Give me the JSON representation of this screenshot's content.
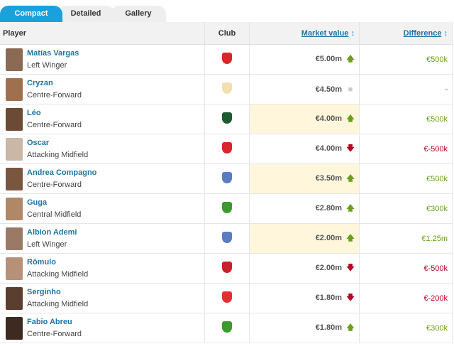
{
  "tabs": [
    {
      "label": "Compact",
      "active": true
    },
    {
      "label": "Detailed"
    },
    {
      "label": "Gallery"
    }
  ],
  "headers": {
    "player": "Player",
    "club": "Club",
    "market_value": "Market value",
    "difference": "Difference",
    "sort_icon": "↕"
  },
  "colors": {
    "accent": "#1aa0dc",
    "up": "#6a9f1d",
    "down": "#b8001f",
    "neutral": "#ccc",
    "highlight": "#fff6dc"
  },
  "rows": [
    {
      "name": "Matías Vargas",
      "position": "Left Winger",
      "club_color": "#d7262a",
      "value": "€5.00m",
      "trend": "up",
      "difference": "€500k",
      "highlight": false,
      "avatar": "#8a6a55"
    },
    {
      "name": "Cryzan",
      "position": "Centre-Forward",
      "club_color": "#f2e0b0",
      "value": "€4.50m",
      "trend": "neutral",
      "difference": "-",
      "highlight": false,
      "avatar": "#a0704e"
    },
    {
      "name": "Léo",
      "position": "Centre-Forward",
      "club_color": "#1f5a30",
      "value": "€4.00m",
      "trend": "up",
      "difference": "€500k",
      "highlight": true,
      "avatar": "#6b4a36"
    },
    {
      "name": "Oscar",
      "position": "Attacking Midfield",
      "club_color": "#d7262a",
      "value": "€4.00m",
      "trend": "down",
      "difference": "€-500k",
      "highlight": false,
      "avatar": "#c9b7a8"
    },
    {
      "name": "Andrea Compagno",
      "position": "Centre-Forward",
      "club_color": "#5a7cc0",
      "value": "€3.50m",
      "trend": "up",
      "difference": "€500k",
      "highlight": true,
      "avatar": "#7a5540"
    },
    {
      "name": "Guga",
      "position": "Central Midfield",
      "club_color": "#3c9a2e",
      "value": "€2.80m",
      "trend": "up",
      "difference": "€300k",
      "highlight": false,
      "avatar": "#b08868"
    },
    {
      "name": "Albion Ademi",
      "position": "Left Winger",
      "club_color": "#5a7cc0",
      "value": "€2.00m",
      "trend": "up",
      "difference": "€1.25m",
      "highlight": true,
      "avatar": "#9a7a66"
    },
    {
      "name": "Rômulo",
      "position": "Attacking Midfield",
      "club_color": "#c8202a",
      "value": "€2.00m",
      "trend": "down",
      "difference": "€-500k",
      "highlight": false,
      "avatar": "#b79078"
    },
    {
      "name": "Serginho",
      "position": "Attacking Midfield",
      "club_color": "#e03030",
      "value": "€1.80m",
      "trend": "down",
      "difference": "€-200k",
      "highlight": false,
      "avatar": "#5a3e30"
    },
    {
      "name": "Fabio Abreu",
      "position": "Centre-Forward",
      "club_color": "#3c9a2e",
      "value": "€1.80m",
      "trend": "up",
      "difference": "€300k",
      "highlight": false,
      "avatar": "#3d2a20"
    }
  ]
}
